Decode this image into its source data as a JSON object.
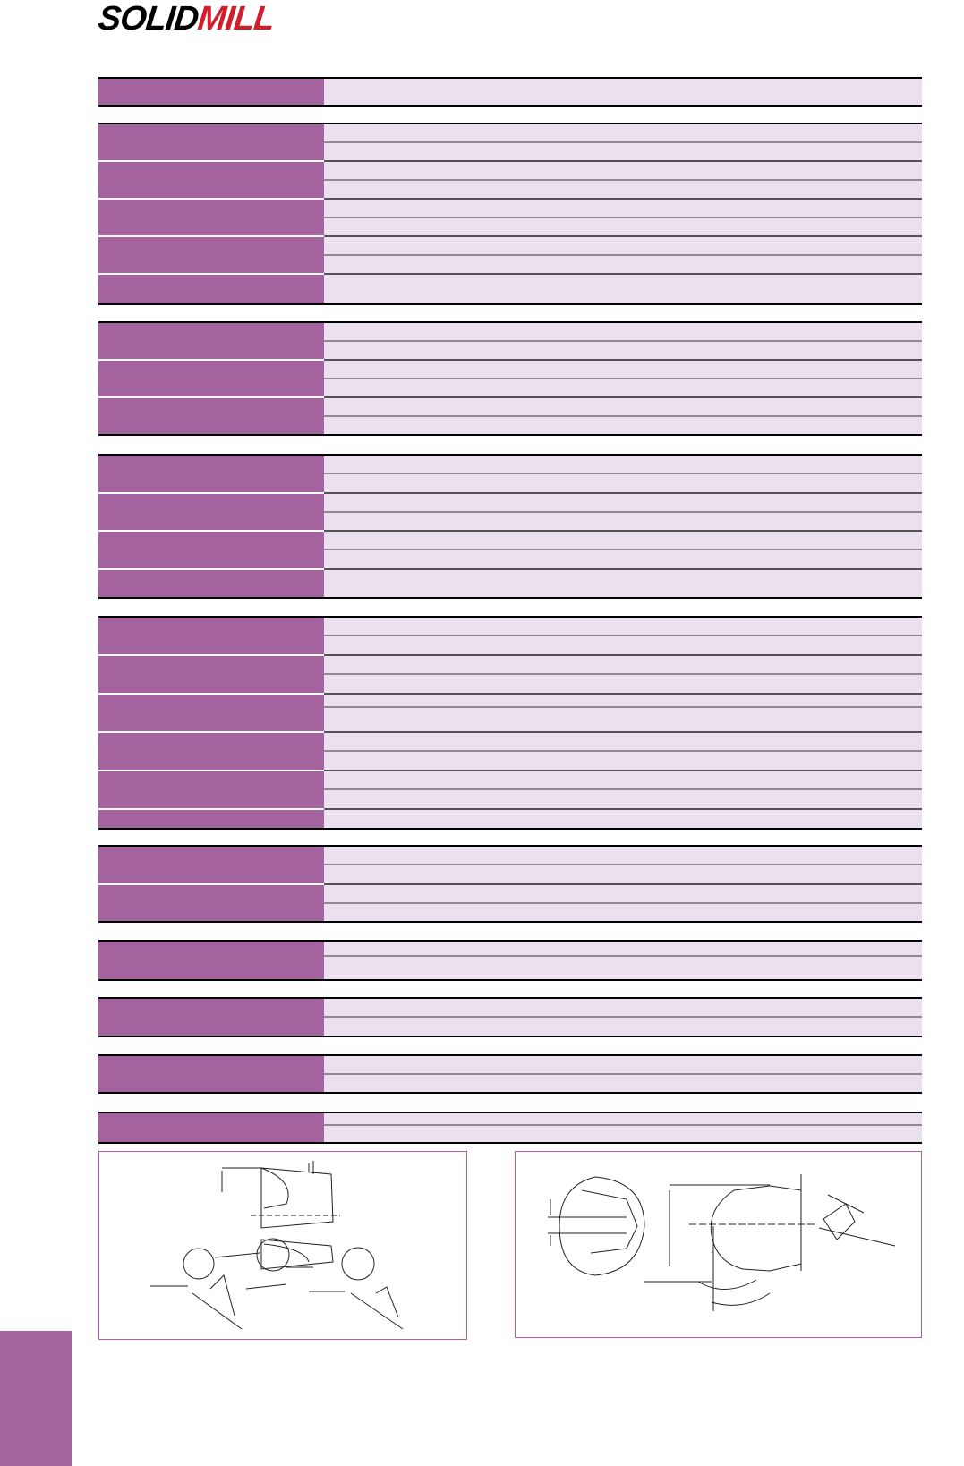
{
  "header": {
    "brand": "SOLID",
    "brand_accent": "MILL"
  }
}
